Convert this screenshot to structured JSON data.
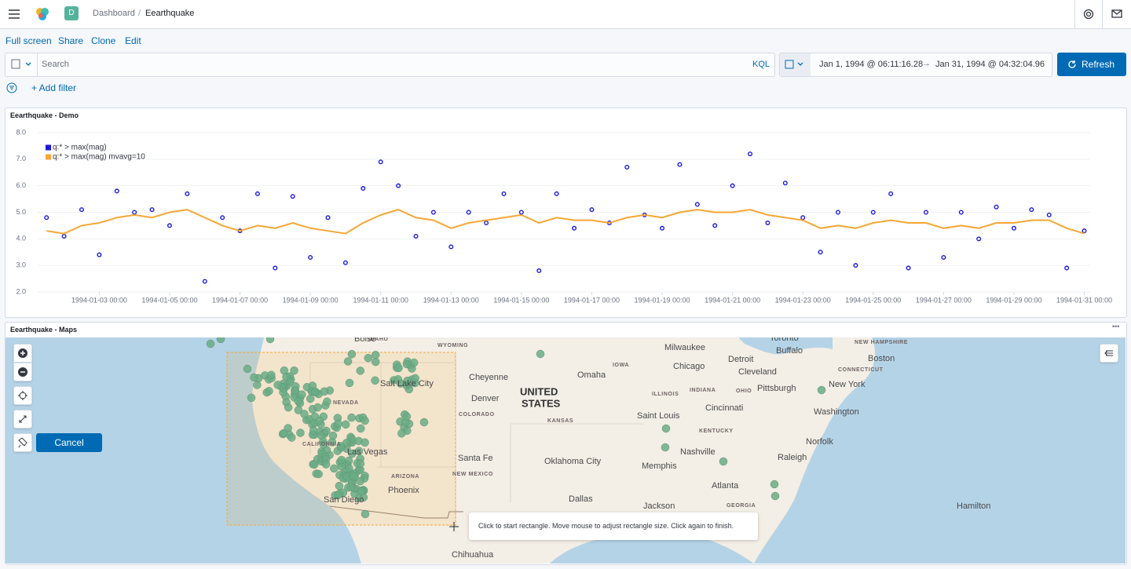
{
  "header": {
    "avatar": "D",
    "breadcrumb": [
      "Dashboard",
      "Eearthquake"
    ]
  },
  "menu": [
    "Full screen",
    "Share",
    "Clone",
    "Edit"
  ],
  "query": {
    "placeholder": "Search",
    "language": "KQL",
    "start": "Jan 1, 1994 @ 06:11:16.28",
    "end": "Jan 31, 1994 @ 04:32:04.96",
    "refresh": "Refresh"
  },
  "filter": {
    "add": "+ Add filter"
  },
  "panels": [
    {
      "title": "Eearthquake - Demo"
    },
    {
      "title": "Eearthquake - Maps"
    }
  ],
  "chart_data": {
    "type": "scatter",
    "x": [
      "1994-01-01 12:00",
      "1994-01-02 00:00",
      "1994-01-02 12:00",
      "1994-01-03 00:00",
      "1994-01-03 12:00",
      "1994-01-04 00:00",
      "1994-01-04 12:00",
      "1994-01-05 00:00",
      "1994-01-05 12:00",
      "1994-01-06 00:00",
      "1994-01-06 12:00",
      "1994-01-07 00:00",
      "1994-01-07 12:00",
      "1994-01-08 00:00",
      "1994-01-08 12:00",
      "1994-01-09 00:00",
      "1994-01-09 12:00",
      "1994-01-10 00:00",
      "1994-01-10 12:00",
      "1994-01-11 00:00",
      "1994-01-11 12:00",
      "1994-01-12 00:00",
      "1994-01-12 12:00",
      "1994-01-13 00:00",
      "1994-01-13 12:00",
      "1994-01-14 00:00",
      "1994-01-14 12:00",
      "1994-01-15 00:00",
      "1994-01-15 12:00",
      "1994-01-16 00:00",
      "1994-01-16 12:00",
      "1994-01-17 00:00",
      "1994-01-17 12:00",
      "1994-01-18 00:00",
      "1994-01-18 12:00",
      "1994-01-19 00:00",
      "1994-01-19 12:00",
      "1994-01-20 00:00",
      "1994-01-20 12:00",
      "1994-01-21 00:00",
      "1994-01-21 12:00",
      "1994-01-22 00:00",
      "1994-01-22 12:00",
      "1994-01-23 00:00",
      "1994-01-23 12:00",
      "1994-01-24 00:00",
      "1994-01-24 12:00",
      "1994-01-25 00:00",
      "1994-01-25 12:00",
      "1994-01-26 00:00",
      "1994-01-26 12:00",
      "1994-01-27 00:00",
      "1994-01-27 12:00",
      "1994-01-28 00:00",
      "1994-01-28 12:00",
      "1994-01-29 00:00",
      "1994-01-29 12:00",
      "1994-01-30 00:00",
      "1994-01-30 12:00",
      "1994-01-31 00:00"
    ],
    "series": [
      {
        "name": "q:* > max(mag)",
        "color": "#1a1adb",
        "type": "scatter",
        "values": [
          4.8,
          4.1,
          5.1,
          3.4,
          5.8,
          5.0,
          5.1,
          4.5,
          5.7,
          2.4,
          4.8,
          4.3,
          5.7,
          2.9,
          5.6,
          3.3,
          4.8,
          3.1,
          5.9,
          6.9,
          6.0,
          4.1,
          5.0,
          3.7,
          5.0,
          4.6,
          5.7,
          5.0,
          2.8,
          5.7,
          4.4,
          5.1,
          4.6,
          6.7,
          4.9,
          4.4,
          6.8,
          5.3,
          4.5,
          6.0,
          7.2,
          4.6,
          6.1,
          4.8,
          3.5,
          5.0,
          3.0,
          5.0,
          5.7,
          2.9,
          5.0,
          3.3,
          5.0,
          4.0,
          5.2,
          4.4,
          5.1,
          4.9,
          2.9,
          4.3
        ]
      },
      {
        "name": "q:* > max(mag) mvavg=10",
        "color": "#f5a735",
        "type": "line",
        "values": [
          4.3,
          4.2,
          4.5,
          4.6,
          4.8,
          4.9,
          4.8,
          5.0,
          5.1,
          4.8,
          4.5,
          4.3,
          4.5,
          4.4,
          4.6,
          4.4,
          4.3,
          4.2,
          4.6,
          4.9,
          5.1,
          4.8,
          4.7,
          4.4,
          4.6,
          4.7,
          4.8,
          4.9,
          4.6,
          4.8,
          4.7,
          4.7,
          4.6,
          4.8,
          4.9,
          4.8,
          5.0,
          5.1,
          5.0,
          5.0,
          5.1,
          4.9,
          4.8,
          4.7,
          4.4,
          4.5,
          4.4,
          4.6,
          4.7,
          4.6,
          4.6,
          4.4,
          4.5,
          4.4,
          4.6,
          4.6,
          4.7,
          4.7,
          4.4,
          4.2
        ]
      }
    ],
    "xlim": [
      "1994-01-01 06:00",
      "1994-01-31 04:00"
    ],
    "xticks": [
      "1994-01-03 00:00",
      "1994-01-05 00:00",
      "1994-01-07 00:00",
      "1994-01-09 00:00",
      "1994-01-11 00:00",
      "1994-01-13 00:00",
      "1994-01-15 00:00",
      "1994-01-17 00:00",
      "1994-01-19 00:00",
      "1994-01-21 00:00",
      "1994-01-23 00:00",
      "1994-01-25 00:00",
      "1994-01-27 00:00",
      "1994-01-29 00:00",
      "1994-01-31 00:00"
    ],
    "ylim": [
      2,
      8
    ],
    "yticks": [
      {
        "value": 2,
        "label": "2.0"
      },
      {
        "value": 3,
        "label": "3.0"
      },
      {
        "value": 4,
        "label": "4.0"
      },
      {
        "value": 5,
        "label": "5.0"
      },
      {
        "value": 6,
        "label": "6.0"
      },
      {
        "value": 7,
        "label": "7.0"
      },
      {
        "value": 8,
        "label": "8.0"
      }
    ],
    "grid": true,
    "legend": "top-left"
  },
  "map": {
    "labels": [
      "Boise",
      "IDAHO",
      "WYOMING",
      "Milwaukee",
      "Toronto",
      "Buffalo",
      "NEW HAMPSHIRE",
      "Boston",
      "Detroit",
      "IOWA",
      "Chicago",
      "Cheyenne",
      "Salt Lake City",
      "Omaha",
      "UNITED",
      "STATES",
      "Cleveland",
      "Pittsburgh",
      "CONNECTICUT",
      "New York",
      "ILLINOIS",
      "INDIANA",
      "OHIO",
      "Denver",
      "NEVADA",
      "COLORADO",
      "KANSAS",
      "Saint Louis",
      "Cincinnati",
      "Washington",
      "CALIFORNIA",
      "Las Vegas",
      "KENTUCKY",
      "Nashville",
      "Norfolk",
      "Raleigh",
      "Santa Fe",
      "Oklahoma City",
      "Memphis",
      "NEW MEXICO",
      "ARIZONA",
      "Phoenix",
      "Atlanta",
      "Dallas",
      "GEORGIA",
      "Jackson",
      "San Diego",
      "Hamilton",
      "Chihuahua"
    ],
    "tooltip": "Click to start rectangle. Move mouse to adjust rectangle size. Click again to finish.",
    "cancel": "Cancel"
  }
}
